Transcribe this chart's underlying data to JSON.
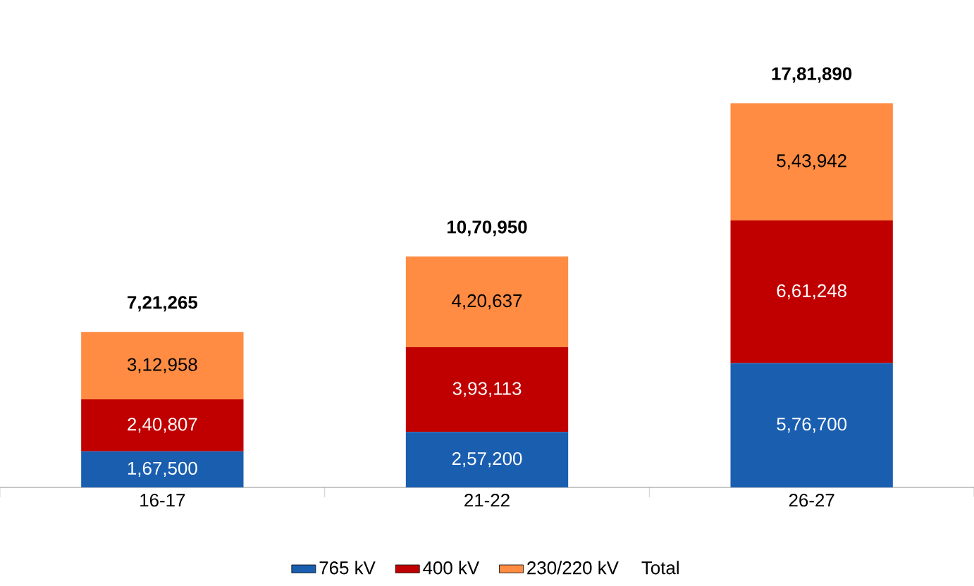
{
  "chart_data": {
    "type": "bar",
    "stacked": true,
    "categories": [
      "16-17",
      "21-22",
      "26-27"
    ],
    "series": [
      {
        "name": "765 kV",
        "color": "#1a5eb0",
        "values": [
          167500,
          257200,
          576700
        ],
        "value_labels": [
          "1,67,500",
          "2,57,200",
          "5,76,700"
        ]
      },
      {
        "name": "400 kV",
        "color": "#c00000",
        "values": [
          240807,
          393113,
          661248
        ],
        "value_labels": [
          "2,40,807",
          "3,93,113",
          "6,61,248"
        ]
      },
      {
        "name": "230/220 kV",
        "color": "#ff8c42",
        "values": [
          312958,
          420637,
          543942
        ],
        "value_labels": [
          "3,12,958",
          "4,20,637",
          "5,43,942"
        ]
      }
    ],
    "totals": [
      "7,21,265",
      "10,70,950",
      "17,81,890"
    ],
    "annotations": [
      "Total"
    ],
    "legend": "bottom"
  }
}
